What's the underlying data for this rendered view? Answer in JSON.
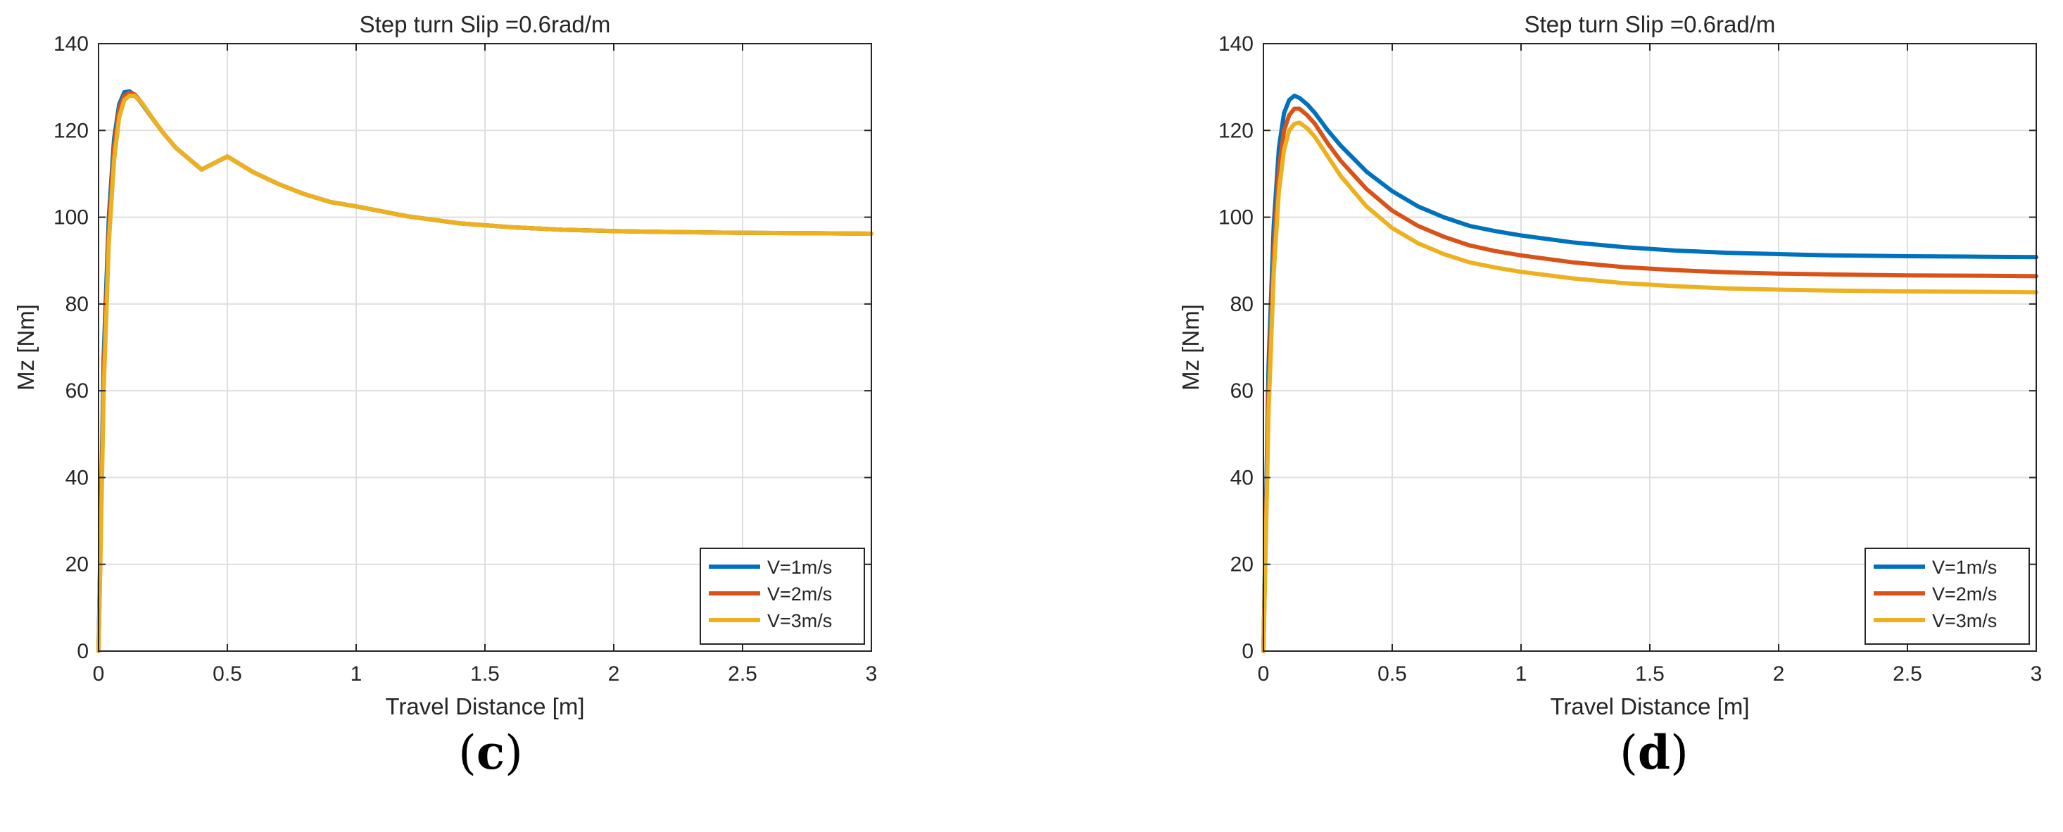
{
  "chart_data": [
    {
      "type": "line",
      "panel_label": "c",
      "title": "Step turn Slip =0.6rad/m",
      "xlabel": "Travel Distance [m]",
      "ylabel": "Mz [Nm]",
      "xlim": [
        0,
        3
      ],
      "ylim": [
        0,
        140
      ],
      "xticks": [
        0,
        0.5,
        1,
        1.5,
        2,
        2.5,
        3
      ],
      "xtick_labels": [
        "0",
        "0.5",
        "1",
        "1.5",
        "2",
        "2.5",
        "3"
      ],
      "yticks": [
        0,
        20,
        40,
        60,
        80,
        100,
        120,
        140
      ],
      "ytick_labels": [
        "0",
        "20",
        "40",
        "60",
        "80",
        "100",
        "120",
        "140"
      ],
      "grid": true,
      "legend_position": "bottom-right",
      "x": [
        0,
        0.01,
        0.02,
        0.04,
        0.06,
        0.08,
        0.1,
        0.12,
        0.14,
        0.17,
        0.2,
        0.25,
        0.3,
        0.4,
        0.5,
        0.6,
        0.7,
        0.8,
        0.9,
        1.0,
        1.2,
        1.4,
        1.6,
        1.8,
        2.0,
        2.2,
        2.5,
        2.8,
        3.0
      ],
      "series": [
        {
          "name": "V=1m/s",
          "color": "#0072BD",
          "values": [
            0,
            35,
            68,
            100,
            118,
            126,
            128.8,
            129,
            128.2,
            126,
            123.5,
            119.5,
            116,
            111,
            114.0,
            110.4,
            107.6,
            105.3,
            103.5,
            102.5,
            100.2,
            98.6,
            97.7,
            97.1,
            96.8,
            96.6,
            96.4,
            96.3,
            96.2
          ]
        },
        {
          "name": "V=2m/s",
          "color": "#D95319",
          "values": [
            0,
            32,
            64,
            97,
            116,
            125,
            128,
            128.7,
            128.3,
            126.2,
            123.6,
            119.5,
            116,
            111,
            114.0,
            110.4,
            107.6,
            105.3,
            103.5,
            102.5,
            100.2,
            98.6,
            97.7,
            97.1,
            96.8,
            96.6,
            96.4,
            96.3,
            96.2
          ]
        },
        {
          "name": "V=3m/s",
          "color": "#EDB120",
          "values": [
            0,
            29,
            60,
            94,
            113,
            123,
            127,
            128,
            128,
            126.2,
            123.6,
            119.5,
            116,
            111,
            114.0,
            110.4,
            107.6,
            105.3,
            103.5,
            102.5,
            100.2,
            98.6,
            97.7,
            97.1,
            96.8,
            96.6,
            96.4,
            96.3,
            96.2
          ]
        }
      ]
    },
    {
      "type": "line",
      "panel_label": "d",
      "title": "Step turn Slip =0.6rad/m",
      "xlabel": "Travel Distance [m]",
      "ylabel": "Mz [Nm]",
      "xlim": [
        0,
        3
      ],
      "ylim": [
        0,
        140
      ],
      "xticks": [
        0,
        0.5,
        1,
        1.5,
        2,
        2.5,
        3
      ],
      "xtick_labels": [
        "0",
        "0.5",
        "1",
        "1.5",
        "2",
        "2.5",
        "3"
      ],
      "yticks": [
        0,
        20,
        40,
        60,
        80,
        100,
        120,
        140
      ],
      "ytick_labels": [
        "0",
        "20",
        "40",
        "60",
        "80",
        "100",
        "120",
        "140"
      ],
      "grid": true,
      "legend_position": "bottom-right",
      "x": [
        0,
        0.01,
        0.02,
        0.04,
        0.06,
        0.08,
        0.1,
        0.12,
        0.14,
        0.17,
        0.2,
        0.25,
        0.3,
        0.4,
        0.5,
        0.6,
        0.7,
        0.8,
        0.9,
        1.0,
        1.2,
        1.4,
        1.6,
        1.8,
        2.0,
        2.2,
        2.5,
        2.8,
        3.0
      ],
      "series": [
        {
          "name": "V=1m/s",
          "color": "#0072BD",
          "values": [
            0,
            34,
            66,
            98,
            116,
            124,
            127,
            128,
            127.5,
            126,
            124,
            120,
            116.5,
            110.5,
            106,
            102.5,
            100,
            98,
            96.8,
            95.8,
            94.2,
            93.1,
            92.3,
            91.8,
            91.5,
            91.2,
            91.0,
            90.9,
            90.8
          ]
        },
        {
          "name": "V=2m/s",
          "color": "#D95319",
          "values": [
            0,
            30,
            60,
            92,
            111,
            120,
            123.5,
            125,
            125,
            123.5,
            121.5,
            117,
            113,
            106.5,
            101.5,
            98,
            95.5,
            93.5,
            92.2,
            91.2,
            89.6,
            88.5,
            87.8,
            87.3,
            87.0,
            86.8,
            86.6,
            86.5,
            86.4
          ]
        },
        {
          "name": "V=3m/s",
          "color": "#EDB120",
          "values": [
            0,
            27,
            55,
            87,
            106,
            115.5,
            120,
            121.5,
            121.8,
            120.5,
            118.5,
            114,
            109.5,
            102.5,
            97.5,
            94,
            91.5,
            89.6,
            88.4,
            87.4,
            85.9,
            84.8,
            84.1,
            83.6,
            83.3,
            83.1,
            82.9,
            82.8,
            82.7
          ]
        }
      ]
    }
  ]
}
